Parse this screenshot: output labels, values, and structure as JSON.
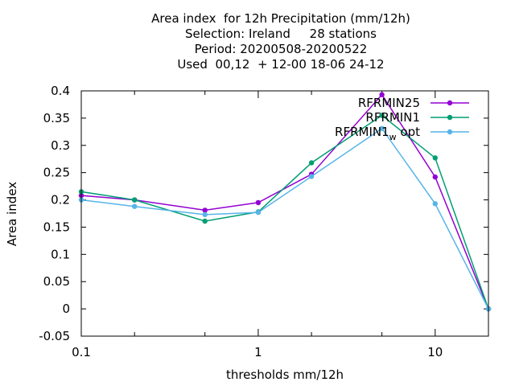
{
  "chart_data": {
    "type": "line",
    "title_lines": [
      "Area index  for 12h Precipitation (mm/12h)",
      "Selection: Ireland     28 stations",
      "Period: 20200508-20200522",
      "Used  00,12  + 12-00 18-06 24-12"
    ],
    "xlabel": "thresholds mm/12h",
    "ylabel": "Area index",
    "xscale": "log",
    "xlim": [
      0.1,
      20
    ],
    "ylim": [
      -0.05,
      0.4
    ],
    "x_tick_labels": [
      {
        "value": 0.1,
        "label": "0.1"
      },
      {
        "value": 1,
        "label": "1"
      },
      {
        "value": 10,
        "label": "10"
      }
    ],
    "x_minor_ticks": [
      0.2,
      0.5,
      2,
      5,
      20
    ],
    "y_ticks": [
      -0.05,
      0,
      0.05,
      0.1,
      0.15,
      0.2,
      0.25,
      0.3,
      0.35,
      0.4
    ],
    "y_tick_labels": [
      "-0.05",
      "0",
      "0.05",
      "0.1",
      "0.15",
      "0.2",
      "0.25",
      "0.3",
      "0.35",
      "0.4"
    ],
    "legend_position": "top-right",
    "x": [
      0.1,
      0.2,
      0.5,
      1,
      2,
      5,
      10,
      20
    ],
    "series": [
      {
        "name": "RFRMIN25",
        "color": "#9400d3",
        "values": [
          0.208,
          0.2,
          0.181,
          0.195,
          0.247,
          0.393,
          0.242,
          0.0
        ]
      },
      {
        "name": "RFRMIN1",
        "color": "#009e73",
        "values": [
          0.215,
          0.2,
          0.161,
          0.178,
          0.268,
          0.355,
          0.277,
          0.0
        ]
      },
      {
        "name": "RFRMIN1_w opt",
        "legend_main": "RFRMIN1",
        "legend_sub": "w",
        "legend_rest": " opt",
        "color": "#56b4e9",
        "values": [
          0.2,
          0.188,
          0.173,
          0.177,
          0.243,
          0.331,
          0.193,
          0.0
        ]
      }
    ]
  }
}
